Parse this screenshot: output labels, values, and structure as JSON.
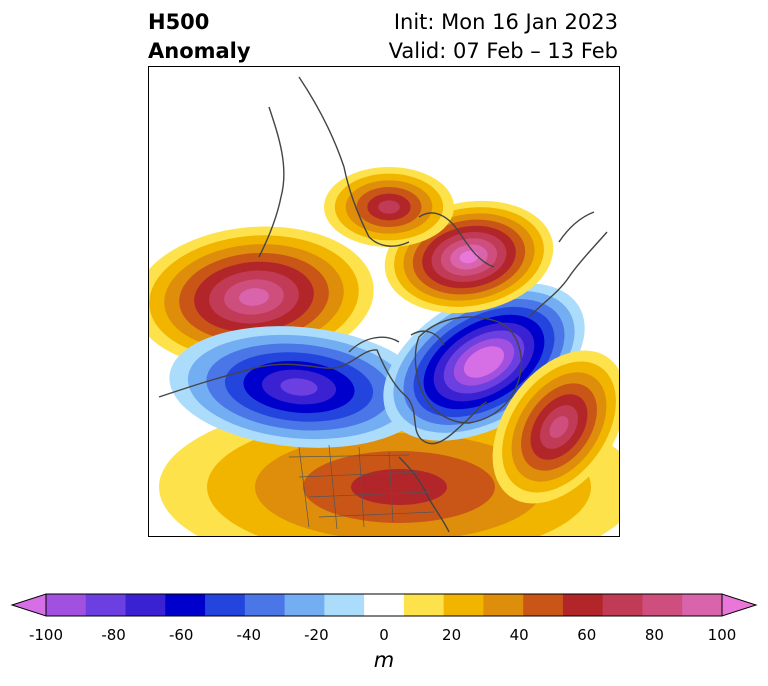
{
  "header": {
    "title_line1": "H500",
    "title_line2": "Anomaly",
    "init_text": "Init: Mon 16 Jan 2023",
    "valid_text": "Valid: 07 Feb – 13 Feb"
  },
  "map": {
    "variable": "500 hPa geopotential height anomaly",
    "projection": "north-polar stereographic",
    "features": [
      {
        "name": "greenland-positive",
        "type": "positive",
        "peak_m": 80
      },
      {
        "name": "alaska-negative",
        "type": "negative",
        "peak_m": -70
      },
      {
        "name": "siberia-negative",
        "type": "negative",
        "peak_m": -100
      },
      {
        "name": "ural-positive",
        "type": "positive",
        "peak_m": 90
      },
      {
        "name": "kamchatka-positive",
        "type": "positive",
        "peak_m": 70
      },
      {
        "name": "north-pacific-positive",
        "type": "positive",
        "peak_m": 60
      },
      {
        "name": "conus-positive",
        "type": "positive",
        "peak_m": 50
      }
    ]
  },
  "colorbar": {
    "unit": "m",
    "levels": [
      -100,
      -90,
      -80,
      -70,
      -60,
      -50,
      -40,
      -30,
      -20,
      -10,
      10,
      20,
      30,
      40,
      50,
      60,
      70,
      80,
      90,
      100
    ],
    "tick_labels": [
      "-100",
      "-80",
      "-60",
      "-40",
      "-20",
      "0",
      "20",
      "40",
      "60",
      "80",
      "100"
    ],
    "colors": [
      "#d66ee6",
      "#a150e0",
      "#6b3fe0",
      "#3a22d3",
      "#0000cd",
      "#2345dd",
      "#4a76e8",
      "#74aef2",
      "#acdcfb",
      "#ffffff",
      "#fde24b",
      "#f1b500",
      "#de8e0a",
      "#c95617",
      "#b2262a",
      "#c23b56",
      "#ce4e7e",
      "#d964ac",
      "#e977da"
    ],
    "extend": "both"
  }
}
